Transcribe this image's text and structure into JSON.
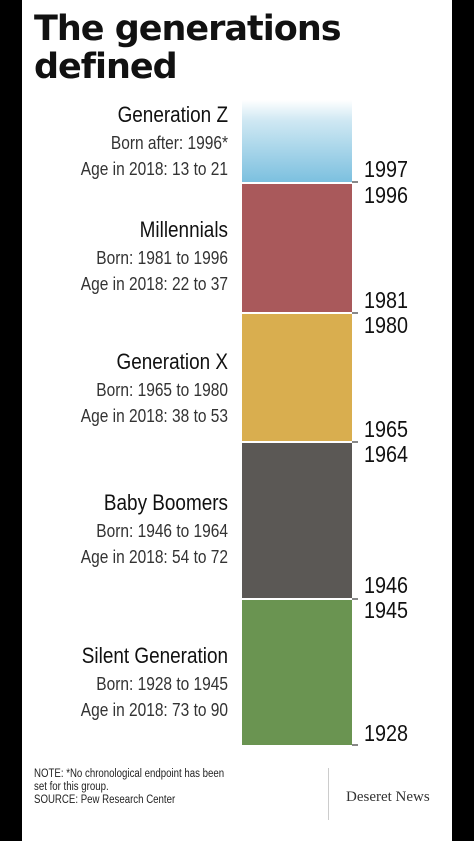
{
  "title": "The generations defined",
  "generations": [
    {
      "name": "Generation Z",
      "born_label": "Born after:",
      "born": "1996*",
      "age_label": "Age in 2018:",
      "age": "13 to 21",
      "start_year": "1997",
      "end_year": "",
      "color": "#7cc0df"
    },
    {
      "name": "Millennials",
      "born_label": "Born:",
      "born": "1981 to 1996",
      "age_label": "Age in 2018:",
      "age": "22 to 37",
      "start_year": "1981",
      "end_year": "1996",
      "color": "#a9595b"
    },
    {
      "name": "Generation X",
      "born_label": "Born:",
      "born": "1965 to 1980",
      "age_label": "Age in 2018:",
      "age": "38 to 53",
      "start_year": "1965",
      "end_year": "1980",
      "color": "#d9ae4f"
    },
    {
      "name": "Baby Boomers",
      "born_label": "Born:",
      "born": "1946 to 1964",
      "age_label": "Age in 2018:",
      "age": "54 to 72",
      "start_year": "1946",
      "end_year": "1964",
      "color": "#5b5855"
    },
    {
      "name": "Silent Generation",
      "born_label": "Born:",
      "born": "1928 to 1945",
      "age_label": "Age in 2018:",
      "age": "73 to 90",
      "start_year": "1928",
      "end_year": "1945",
      "color": "#6a9451"
    }
  ],
  "note": {
    "line1": "NOTE: *No chronological endpoint has been",
    "line2": "set for this group.",
    "source": "SOURCE: Pew Research Center"
  },
  "logo_text": "Deseret News"
}
